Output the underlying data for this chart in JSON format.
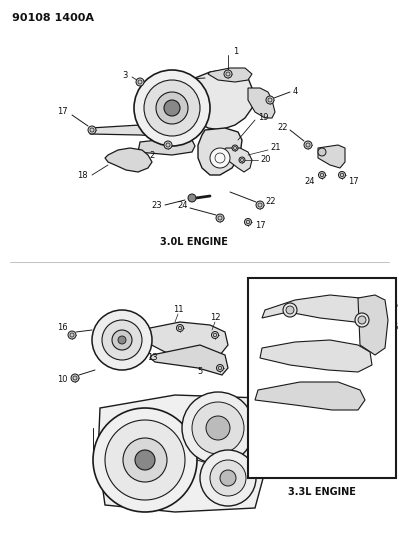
{
  "title": "90108 1400A",
  "bg_color": "#ffffff",
  "line_color": "#1a1a1a",
  "text_color": "#111111",
  "engine1_label": "3.0L ENGINE",
  "engine2_label": "3.3L ENGINE",
  "fig_width": 3.99,
  "fig_height": 5.33,
  "dpi": 100,
  "title_fontsize": 8,
  "label_fontsize": 6,
  "engine_label_fontsize": 7
}
